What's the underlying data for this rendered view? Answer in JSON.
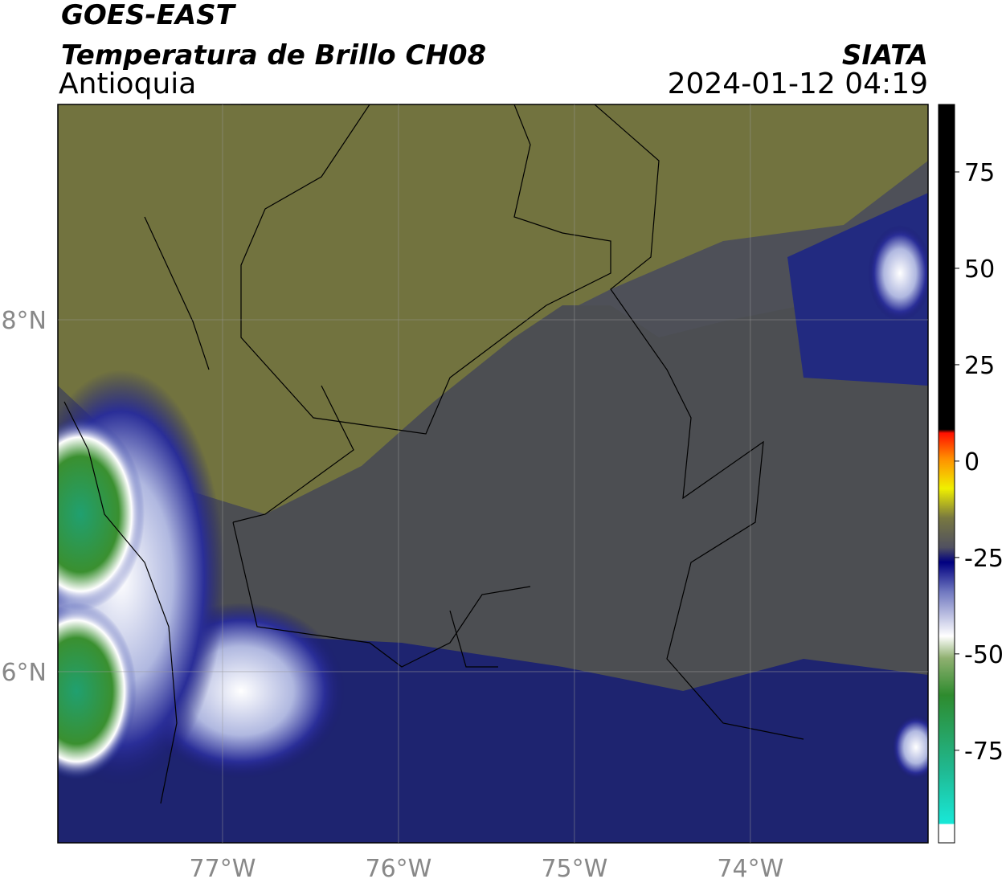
{
  "header": {
    "title": "GOES-EAST",
    "subtitle": "Temperatura de Brillo CH08",
    "region": "Antioquia",
    "source": "SIATA",
    "datetime": "2024-01-12 04:19"
  },
  "map": {
    "xlim": [
      -77.936,
      -72.99
    ],
    "ylim": [
      5.027,
      9.224
    ],
    "xticks": [
      {
        "value": -77,
        "label": "77°W"
      },
      {
        "value": -76,
        "label": "76°W"
      },
      {
        "value": -75,
        "label": "75°W"
      },
      {
        "value": -74,
        "label": "74°W"
      }
    ],
    "yticks": [
      {
        "value": 8,
        "label": "8°N"
      },
      {
        "value": 6,
        "label": "6°N"
      }
    ]
  },
  "colorbar": {
    "lim": [
      -99,
      92.5
    ],
    "ticks": [
      75,
      50,
      25,
      0,
      -25,
      -50,
      -75
    ]
  }
}
